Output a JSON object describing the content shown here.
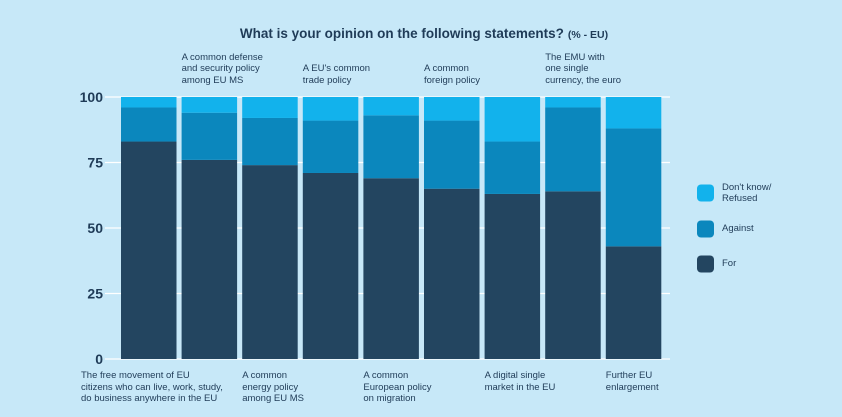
{
  "chart_data": {
    "type": "bar",
    "stacked": true,
    "title": "What is your opinion on the following statements?",
    "title_suffix": "(% - EU)",
    "ylim": [
      0,
      100
    ],
    "yticks": [
      0,
      25,
      50,
      75,
      100
    ],
    "grid": true,
    "legend_position": "right",
    "categories": [
      "The free movement of EU citizens who can live, work, study, do business anywhere in the EU",
      "A common defense and security policy among EU MS",
      "A common energy policy among EU MS",
      "A EU's common trade policy",
      "A common European policy on migration",
      "A common foreign policy",
      "A digital single market in the EU",
      "The EMU with one single currency, the euro",
      "Further EU enlargement"
    ],
    "category_label_lines": [
      [
        "The free movement of EU",
        "citizens who can live, work, study,",
        "do business anywhere in the EU"
      ],
      [
        "A common defense",
        "and security policy",
        "among EU MS"
      ],
      [
        "A common",
        "energy policy",
        "among EU MS"
      ],
      [
        "A EU's common",
        "trade policy"
      ],
      [
        "A common",
        "European policy",
        "on migration"
      ],
      [
        "A common",
        "foreign policy"
      ],
      [
        "A digital single",
        "market in the EU"
      ],
      [
        "The EMU with",
        "one single",
        "currency, the euro"
      ],
      [
        "Further EU",
        "enlargement"
      ]
    ],
    "category_label_position": [
      "bottom",
      "top",
      "bottom",
      "top",
      "bottom",
      "top",
      "bottom",
      "top",
      "bottom"
    ],
    "series": [
      {
        "name": "For",
        "color": "#234560",
        "values": [
          83,
          76,
          74,
          71,
          69,
          65,
          63,
          64,
          43
        ]
      },
      {
        "name": "Against",
        "color": "#0b87bd",
        "values": [
          13,
          18,
          18,
          20,
          24,
          26,
          20,
          32,
          45
        ]
      },
      {
        "name": "Don't know/ Refused",
        "legend_lines": [
          "Don't know/",
          "Refused"
        ],
        "color": "#12b2ec",
        "values": [
          4,
          6,
          8,
          9,
          7,
          9,
          17,
          4,
          12
        ]
      }
    ],
    "colors": {
      "background": "#c7e8f8",
      "gridline": "#ffffff",
      "axis_text": "#1f3b57"
    }
  }
}
